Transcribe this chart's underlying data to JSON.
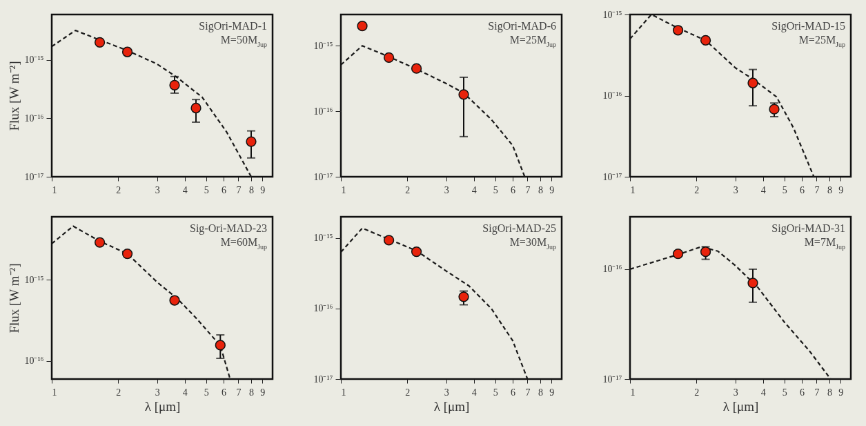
{
  "chart_data": [
    {
      "type": "scatter",
      "log": "xy",
      "xlim": [
        1,
        10
      ],
      "ylim": [
        1e-17,
        6e-15
      ],
      "xticks": [
        1,
        2,
        3,
        4,
        5,
        6,
        7,
        8,
        9
      ],
      "yticks": [
        {
          "value": 1e-17,
          "label": "10⁻¹⁷"
        },
        {
          "value": 1e-16,
          "label": "10⁻¹⁶"
        },
        {
          "value": 1e-15,
          "label": "10⁻¹⁵"
        }
      ],
      "ylabel": "Flux [W m⁻²]",
      "annotations": [
        "SigOri-MAD-1",
        "M=50M$_{Jup}$"
      ],
      "series": [
        {
          "type": "line",
          "color": "#1a1a1a",
          "line_style": "dashed",
          "x": [
            1,
            1.28,
            1.65,
            2.2,
            3.0,
            3.7,
            4.8,
            6.2,
            8.0
          ],
          "values": [
            1.7e-15,
            3.2e-15,
            2.2e-15,
            1.45e-15,
            8.5e-16,
            5e-16,
            2.3e-16,
            5.8e-17,
            1e-17
          ]
        },
        {
          "type": "scatter",
          "marker": "circle",
          "color": "#e8230c",
          "x": [
            1.65,
            2.2,
            3.6,
            4.5,
            8.0
          ],
          "values": [
            2e-15,
            1.37e-15,
            3.7e-16,
            1.5e-16,
            4e-17
          ],
          "errors": [
            null,
            null,
            [
              2.7e-16,
              5.2e-16
            ],
            [
              8.6e-17,
              2.1e-16
            ],
            [
              2.1e-17,
              6.1e-17
            ]
          ]
        }
      ]
    },
    {
      "type": "scatter",
      "log": "xy",
      "xlim": [
        1,
        10
      ],
      "ylim": [
        1e-17,
        3e-15
      ],
      "xticks": [
        1,
        2,
        3,
        4,
        5,
        6,
        7,
        8,
        9
      ],
      "yticks": [
        {
          "value": 1e-17,
          "label": "10⁻¹⁷"
        },
        {
          "value": 1e-16,
          "label": "10⁻¹⁶"
        },
        {
          "value": 1e-15,
          "label": "10⁻¹⁵"
        }
      ],
      "annotations": [
        "SigOri-MAD-6",
        "M=25M$_{Jup}$"
      ],
      "series": [
        {
          "type": "line",
          "color": "#1a1a1a",
          "line_style": "dashed",
          "x": [
            1,
            1.25,
            1.65,
            2.2,
            3.0,
            3.6,
            4.8,
            6.0,
            6.8
          ],
          "values": [
            5.1e-16,
            1e-15,
            6.8e-16,
            4.4e-16,
            2.65e-16,
            1.9e-16,
            7.5e-17,
            3e-17,
            1e-17
          ]
        },
        {
          "type": "scatter",
          "marker": "circle",
          "color": "#e8230c",
          "x": [
            1.25,
            1.65,
            2.2,
            3.6
          ],
          "values": [
            2e-15,
            6.6e-16,
            4.5e-16,
            1.8e-16
          ],
          "errors": [
            null,
            null,
            null,
            [
              4.1e-17,
              3.3e-16
            ]
          ]
        }
      ]
    },
    {
      "type": "scatter",
      "log": "xy",
      "xlim": [
        1,
        10
      ],
      "ylim": [
        1e-17,
        1e-15
      ],
      "xticks": [
        1,
        2,
        3,
        4,
        5,
        6,
        7,
        8,
        9
      ],
      "yticks": [
        {
          "value": 1e-17,
          "label": "10⁻¹⁷"
        },
        {
          "value": 1e-16,
          "label": "10⁻¹⁶"
        },
        {
          "value": 1e-15,
          "label": "10⁻¹⁵"
        }
      ],
      "annotations": [
        "SigOri-MAD-15",
        "M=25M$_{Jup}$"
      ],
      "series": [
        {
          "type": "line",
          "color": "#1a1a1a",
          "line_style": "dashed",
          "x": [
            1,
            1.25,
            1.65,
            2.2,
            3.0,
            3.6,
            4.6,
            5.5,
            6.8
          ],
          "values": [
            5e-16,
            1e-15,
            6.8e-16,
            4.8e-16,
            2.2e-16,
            1.6e-16,
            9.7e-17,
            4e-17,
            1e-17
          ]
        },
        {
          "type": "scatter",
          "marker": "circle",
          "color": "#e8230c",
          "x": [
            1.65,
            2.2,
            3.6,
            4.5
          ],
          "values": [
            6.4e-16,
            4.8e-16,
            1.43e-16,
            6.8e-17
          ],
          "errors": [
            null,
            null,
            [
              7.5e-17,
              2.1e-16
            ],
            [
              5.5e-17,
              8.1e-17
            ]
          ]
        }
      ]
    },
    {
      "type": "scatter",
      "log": "xy",
      "xlim": [
        1,
        10
      ],
      "ylim": [
        6e-17,
        6e-15
      ],
      "xticks": [
        1,
        2,
        3,
        4,
        5,
        6,
        7,
        8,
        9
      ],
      "yticks": [
        {
          "value": 1e-16,
          "label": "10⁻¹⁶"
        },
        {
          "value": 1e-15,
          "label": "10⁻¹⁵"
        }
      ],
      "xlabel": "λ [μm]",
      "ylabel": "Flux [W m⁻²]",
      "annotations": [
        "Sig-Ori-MAD-23",
        "M=60M$_{Jup}$"
      ],
      "series": [
        {
          "type": "line",
          "color": "#1a1a1a",
          "line_style": "dashed",
          "x": [
            1,
            1.25,
            1.65,
            2.2,
            3.0,
            3.7,
            4.5,
            5.8,
            6.4
          ],
          "values": [
            2.8e-15,
            4.6e-15,
            3e-15,
            2.1e-15,
            9.4e-16,
            5.9e-16,
            3.4e-16,
            1.55e-16,
            6.2e-17
          ]
        },
        {
          "type": "scatter",
          "marker": "circle",
          "color": "#e8230c",
          "x": [
            1.65,
            2.2,
            3.6,
            5.8
          ],
          "values": [
            2.9e-15,
            2.1e-15,
            5.6e-16,
            1.57e-16
          ],
          "errors": [
            null,
            null,
            null,
            [
              1.08e-16,
              2.1e-16
            ]
          ]
        }
      ]
    },
    {
      "type": "scatter",
      "log": "xy",
      "xlim": [
        1,
        10
      ],
      "ylim": [
        1e-17,
        2e-15
      ],
      "xticks": [
        1,
        2,
        3,
        4,
        5,
        6,
        7,
        8,
        9
      ],
      "yticks": [
        {
          "value": 1e-17,
          "label": "10⁻¹⁷"
        },
        {
          "value": 1e-16,
          "label": "10⁻¹⁶"
        },
        {
          "value": 1e-15,
          "label": "10⁻¹⁵"
        }
      ],
      "xlabel": "λ [μm]",
      "annotations": [
        "SigOri-MAD-25",
        "M=30M$_{Jup}$"
      ],
      "series": [
        {
          "type": "line",
          "color": "#1a1a1a",
          "line_style": "dashed",
          "x": [
            1,
            1.25,
            1.65,
            2.2,
            3.0,
            3.8,
            4.8,
            6.0,
            7.0
          ],
          "values": [
            6.3e-16,
            1.38e-15,
            9.6e-16,
            6.6e-16,
            3.4e-16,
            2.1e-16,
            1e-16,
            3.5e-17,
            1e-17
          ]
        },
        {
          "type": "scatter",
          "marker": "circle",
          "color": "#e8230c",
          "x": [
            1.65,
            2.2,
            3.6
          ],
          "values": [
            9.3e-16,
            6.4e-16,
            1.47e-16
          ],
          "errors": [
            null,
            null,
            [
              1.13e-16,
              1.77e-16
            ]
          ]
        }
      ]
    },
    {
      "type": "scatter",
      "log": "xy",
      "xlim": [
        1,
        10
      ],
      "ylim": [
        1e-17,
        3e-16
      ],
      "xticks": [
        1,
        2,
        3,
        4,
        5,
        6,
        7,
        8,
        9
      ],
      "yticks": [
        {
          "value": 1e-17,
          "label": "10⁻¹⁷"
        },
        {
          "value": 1e-16,
          "label": "10⁻¹⁶"
        }
      ],
      "xlabel": "λ [μm]",
      "annotations": [
        "SigOri-MAD-31",
        "M=7M$_{Jup}$"
      ],
      "series": [
        {
          "type": "line",
          "color": "#1a1a1a",
          "line_style": "dashed",
          "x": [
            1,
            1.65,
            2.1,
            2.5,
            3.0,
            3.8,
            5.0,
            6.5,
            8.1
          ],
          "values": [
            1e-16,
            1.36e-16,
            1.6e-16,
            1.46e-16,
            1.08e-16,
            6.8e-17,
            3.3e-17,
            1.8e-17,
            1e-17
          ]
        },
        {
          "type": "scatter",
          "marker": "circle",
          "color": "#e8230c",
          "x": [
            1.65,
            2.2,
            3.6
          ],
          "values": [
            1.38e-16,
            1.44e-16,
            7.5e-17
          ],
          "errors": [
            null,
            [
              1.23e-16,
              1.6e-16
            ],
            [
              5e-17,
              1e-16
            ]
          ]
        }
      ]
    }
  ]
}
